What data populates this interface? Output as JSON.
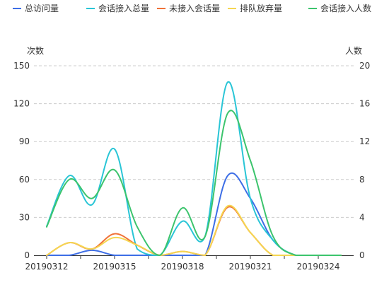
{
  "chart_data": {
    "type": "line",
    "legend_position": "top",
    "grid": true,
    "x": [
      "20190312",
      "20190313",
      "20190314",
      "20190315",
      "20190316",
      "20190317",
      "20190318",
      "20190319",
      "20190320",
      "20190321",
      "20190322",
      "20190323",
      "20190324",
      "20190325"
    ],
    "x_tick_labels": [
      "20190312",
      "20190315",
      "20190318",
      "20190321",
      "20190324"
    ],
    "y_left": {
      "name": "次数",
      "range": [
        0,
        150
      ],
      "ticks": [
        "0",
        "30",
        "60",
        "90",
        "120",
        "150"
      ]
    },
    "y_right": {
      "name": "人数",
      "range": [
        0,
        20
      ],
      "ticks": [
        "0",
        "4",
        "8",
        "12",
        "16",
        "20"
      ]
    },
    "series": [
      {
        "name": "总访问量",
        "color": "#3d6ee6",
        "axis": "left",
        "values": [
          0,
          0,
          4,
          0,
          0,
          0,
          0,
          0,
          63,
          45,
          12,
          0,
          0,
          0
        ]
      },
      {
        "name": "会话接入总量",
        "color": "#29c5d6",
        "axis": "left",
        "values": [
          23,
          63,
          40,
          84,
          5,
          0,
          27,
          15,
          137,
          45,
          12,
          0,
          0,
          0
        ]
      },
      {
        "name": "未接入会话量",
        "color": "#f07238",
        "axis": "left",
        "values": [
          0,
          10,
          5,
          17,
          8,
          0,
          3,
          0,
          38,
          18,
          0,
          0,
          0,
          0
        ]
      },
      {
        "name": "排队放弃量",
        "color": "#f5d651",
        "axis": "left",
        "values": [
          0,
          10,
          5,
          14,
          8,
          0,
          3,
          0,
          39,
          18,
          0,
          0,
          0,
          0
        ]
      },
      {
        "name": "会话接入人数",
        "color": "#3cc46d",
        "axis": "right",
        "values": [
          3,
          8,
          6,
          9,
          3,
          0,
          5,
          2,
          15,
          10,
          2,
          0,
          0,
          0
        ]
      }
    ]
  }
}
